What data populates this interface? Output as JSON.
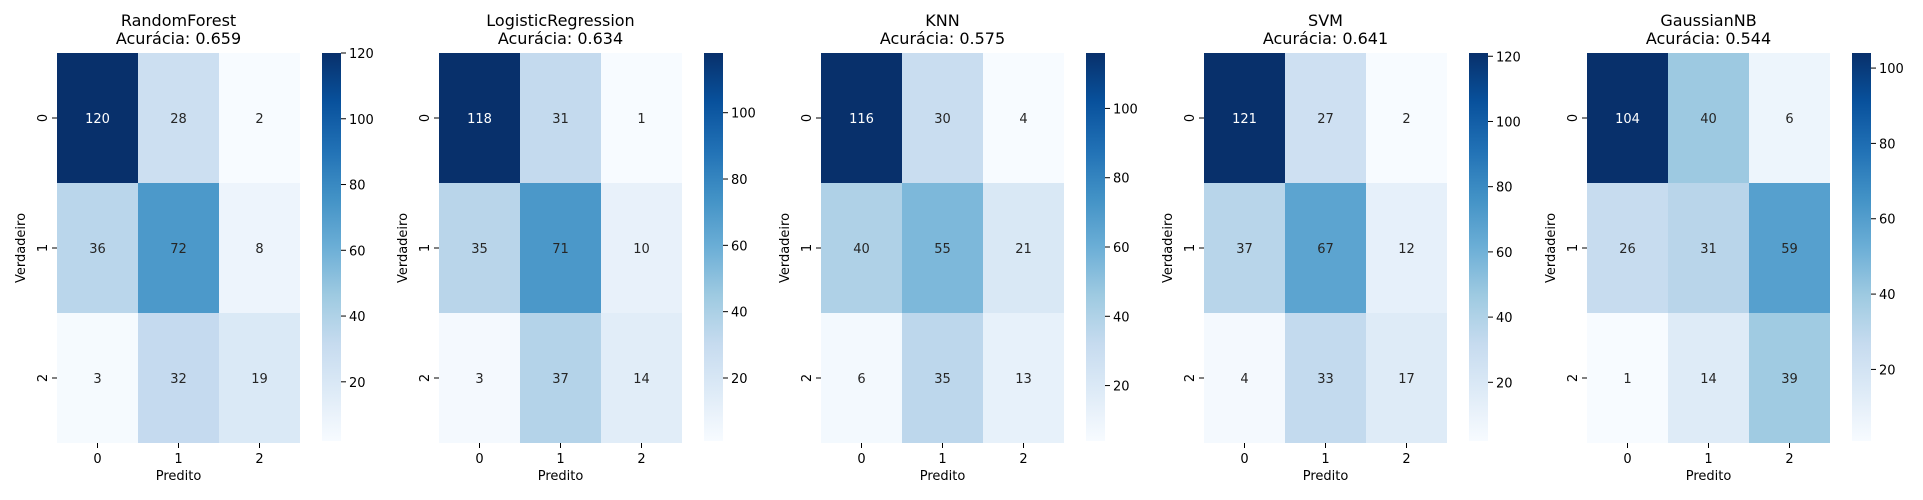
{
  "chart_data": [
    {
      "type": "heatmap",
      "title": "RandomForest",
      "subtitle": "Acurácia: 0.659",
      "xlabel": "Predito",
      "ylabel": "Verdadeiro",
      "x_categories": [
        "0",
        "1",
        "2"
      ],
      "y_categories": [
        "0",
        "1",
        "2"
      ],
      "values": [
        [
          120,
          28,
          2
        ],
        [
          36,
          72,
          8
        ],
        [
          3,
          32,
          19
        ]
      ],
      "colormap": "Blues",
      "colorbar_ticks": [
        20,
        40,
        60,
        80,
        100,
        120
      ],
      "colorbar_range": [
        2,
        120
      ]
    },
    {
      "type": "heatmap",
      "title": "LogisticRegression",
      "subtitle": "Acurácia: 0.634",
      "xlabel": "Predito",
      "ylabel": "Verdadeiro",
      "x_categories": [
        "0",
        "1",
        "2"
      ],
      "y_categories": [
        "0",
        "1",
        "2"
      ],
      "values": [
        [
          118,
          31,
          1
        ],
        [
          35,
          71,
          10
        ],
        [
          3,
          37,
          14
        ]
      ],
      "colormap": "Blues",
      "colorbar_ticks": [
        20,
        40,
        60,
        80,
        100
      ],
      "colorbar_range": [
        1,
        118
      ]
    },
    {
      "type": "heatmap",
      "title": "KNN",
      "subtitle": "Acurácia: 0.575",
      "xlabel": "Predito",
      "ylabel": "Verdadeiro",
      "x_categories": [
        "0",
        "1",
        "2"
      ],
      "y_categories": [
        "0",
        "1",
        "2"
      ],
      "values": [
        [
          116,
          30,
          4
        ],
        [
          40,
          55,
          21
        ],
        [
          6,
          35,
          13
        ]
      ],
      "colormap": "Blues",
      "colorbar_ticks": [
        20,
        40,
        60,
        80,
        100
      ],
      "colorbar_range": [
        4,
        116
      ]
    },
    {
      "type": "heatmap",
      "title": "SVM",
      "subtitle": "Acurácia: 0.641",
      "xlabel": "Predito",
      "ylabel": "Verdadeiro",
      "x_categories": [
        "0",
        "1",
        "2"
      ],
      "y_categories": [
        "0",
        "1",
        "2"
      ],
      "values": [
        [
          121,
          27,
          2
        ],
        [
          37,
          67,
          12
        ],
        [
          4,
          33,
          17
        ]
      ],
      "colormap": "Blues",
      "colorbar_ticks": [
        20,
        40,
        60,
        80,
        100,
        120
      ],
      "colorbar_range": [
        2,
        121
      ]
    },
    {
      "type": "heatmap",
      "title": "GaussianNB",
      "subtitle": "Acurácia: 0.544",
      "xlabel": "Predito",
      "ylabel": "Verdadeiro",
      "x_categories": [
        "0",
        "1",
        "2"
      ],
      "y_categories": [
        "0",
        "1",
        "2"
      ],
      "values": [
        [
          104,
          40,
          6
        ],
        [
          26,
          31,
          59
        ],
        [
          1,
          14,
          39
        ]
      ],
      "colormap": "Blues",
      "colorbar_ticks": [
        20,
        40,
        60,
        80,
        100
      ],
      "colorbar_range": [
        1,
        104
      ]
    }
  ]
}
